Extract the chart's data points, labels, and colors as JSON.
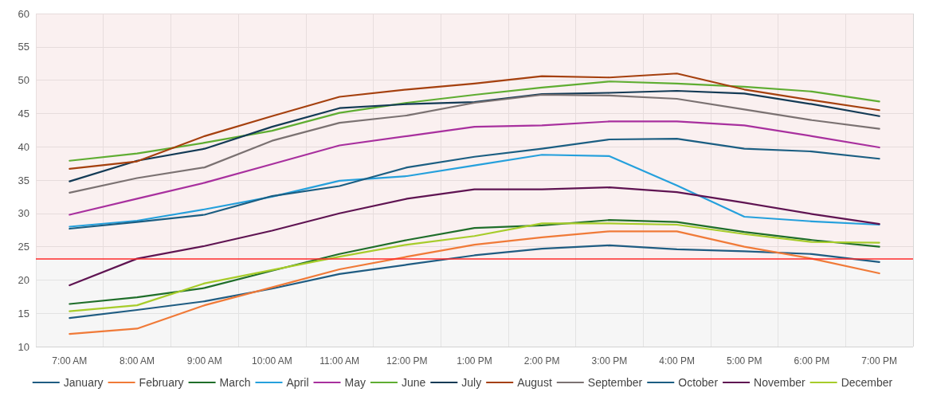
{
  "chart_data": {
    "type": "line",
    "categories": [
      "7:00 AM",
      "8:00 AM",
      "9:00 AM",
      "10:00 AM",
      "11:00 AM",
      "12:00 PM",
      "1:00 PM",
      "2:00 PM",
      "3:00 PM",
      "4:00 PM",
      "5:00 PM",
      "6:00 PM",
      "7:00 PM"
    ],
    "series": [
      {
        "name": "January",
        "color": "#1f5c82",
        "values": [
          14.3,
          15.5,
          16.8,
          18.7,
          20.9,
          22.3,
          23.7,
          24.7,
          25.2,
          24.6,
          24.3,
          23.9,
          22.7
        ]
      },
      {
        "name": "February",
        "color": "#f07a38",
        "values": [
          11.9,
          12.7,
          16.2,
          18.9,
          21.6,
          23.5,
          25.3,
          26.4,
          27.3,
          27.3,
          25.0,
          23.2,
          21.0
        ]
      },
      {
        "name": "March",
        "color": "#1f6e2a",
        "values": [
          16.4,
          17.4,
          18.8,
          21.4,
          23.9,
          26.0,
          27.8,
          28.2,
          29.0,
          28.7,
          27.2,
          26.0,
          25.0
        ]
      },
      {
        "name": "April",
        "color": "#25a0dc",
        "values": [
          28.0,
          28.9,
          30.6,
          32.5,
          34.9,
          35.6,
          37.2,
          38.8,
          38.6,
          34.2,
          29.5,
          28.8,
          28.3
        ]
      },
      {
        "name": "May",
        "color": "#a8309e",
        "values": [
          29.8,
          32.2,
          34.6,
          37.4,
          40.2,
          41.6,
          43.0,
          43.2,
          43.8,
          43.8,
          43.2,
          41.6,
          39.9
        ]
      },
      {
        "name": "June",
        "color": "#5fad32",
        "values": [
          37.9,
          39.0,
          40.6,
          42.4,
          45.1,
          46.6,
          47.8,
          48.9,
          49.8,
          49.5,
          49.0,
          48.3,
          46.8
        ]
      },
      {
        "name": "July",
        "color": "#133a55",
        "values": [
          34.8,
          37.9,
          39.7,
          43.0,
          45.8,
          46.4,
          46.7,
          47.9,
          48.1,
          48.4,
          48.0,
          46.4,
          44.6
        ]
      },
      {
        "name": "August",
        "color": "#a5400e",
        "values": [
          36.7,
          37.8,
          41.6,
          44.6,
          47.5,
          48.6,
          49.5,
          50.6,
          50.4,
          51.0,
          48.6,
          47.0,
          45.5
        ]
      },
      {
        "name": "September",
        "color": "#7b7272",
        "values": [
          33.1,
          35.3,
          36.9,
          40.9,
          43.6,
          44.7,
          46.6,
          47.8,
          47.7,
          47.2,
          45.6,
          44.0,
          42.7
        ]
      },
      {
        "name": "October",
        "color": "#1b5e82",
        "values": [
          27.7,
          28.7,
          29.8,
          32.6,
          34.1,
          36.9,
          38.5,
          39.7,
          41.1,
          41.2,
          39.7,
          39.3,
          38.2
        ]
      },
      {
        "name": "November",
        "color": "#5f1452",
        "values": [
          19.2,
          23.2,
          25.1,
          27.4,
          30.0,
          32.2,
          33.6,
          33.6,
          33.9,
          33.2,
          31.6,
          29.9,
          28.4
        ]
      },
      {
        "name": "December",
        "color": "#a7cc2a",
        "values": [
          15.3,
          16.2,
          19.5,
          21.5,
          23.5,
          25.3,
          26.6,
          28.5,
          28.5,
          28.3,
          26.9,
          25.7,
          25.6
        ]
      }
    ],
    "ylim": [
      10,
      60
    ],
    "yticks": [
      10,
      15,
      20,
      25,
      30,
      35,
      40,
      45,
      50,
      55,
      60
    ],
    "ref_lines": [
      {
        "axis": "y",
        "value": 23.2,
        "color": "#ff2a2a"
      }
    ],
    "bands": [
      {
        "axis": "y",
        "from": 23.2,
        "to": 60,
        "color": "#f6e4e4"
      },
      {
        "axis": "y",
        "from": 10,
        "to": 23.2,
        "color": "#eeeeee"
      }
    ],
    "grid": true,
    "legend": "bottom",
    "marker": "none",
    "line_style": "solid"
  }
}
